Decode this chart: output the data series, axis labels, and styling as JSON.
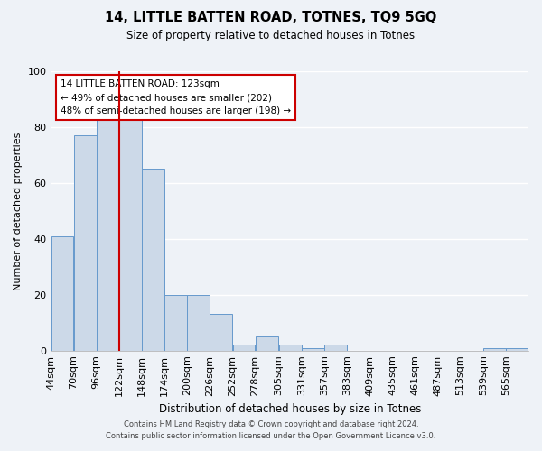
{
  "title": "14, LITTLE BATTEN ROAD, TOTNES, TQ9 5GQ",
  "subtitle": "Size of property relative to detached houses in Totnes",
  "xlabel": "Distribution of detached houses by size in Totnes",
  "ylabel": "Number of detached properties",
  "bin_labels": [
    "44sqm",
    "70sqm",
    "96sqm",
    "122sqm",
    "148sqm",
    "174sqm",
    "200sqm",
    "226sqm",
    "252sqm",
    "278sqm",
    "305sqm",
    "331sqm",
    "357sqm",
    "383sqm",
    "409sqm",
    "435sqm",
    "461sqm",
    "487sqm",
    "513sqm",
    "539sqm",
    "565sqm"
  ],
  "bar_heights": [
    41,
    77,
    85,
    83,
    65,
    20,
    20,
    13,
    2,
    5,
    2,
    1,
    2,
    0,
    0,
    0,
    0,
    0,
    0,
    1,
    1
  ],
  "bin_edges": [
    44,
    70,
    96,
    122,
    148,
    174,
    200,
    226,
    252,
    278,
    305,
    331,
    357,
    383,
    409,
    435,
    461,
    487,
    513,
    539,
    565,
    591
  ],
  "bar_color": "#ccd9e8",
  "bar_edge_color": "#6699cc",
  "vline_x": 122,
  "vline_color": "#cc0000",
  "ylim": [
    0,
    100
  ],
  "annotation_box_text": "14 LITTLE BATTEN ROAD: 123sqm\n← 49% of detached houses are smaller (202)\n48% of semi-detached houses are larger (198) →",
  "annotation_box_color": "#cc0000",
  "footer_line1": "Contains HM Land Registry data © Crown copyright and database right 2024.",
  "footer_line2": "Contains public sector information licensed under the Open Government Licence v3.0.",
  "background_color": "#eef2f7",
  "plot_bg_color": "#eef2f7",
  "grid_color": "#ffffff"
}
